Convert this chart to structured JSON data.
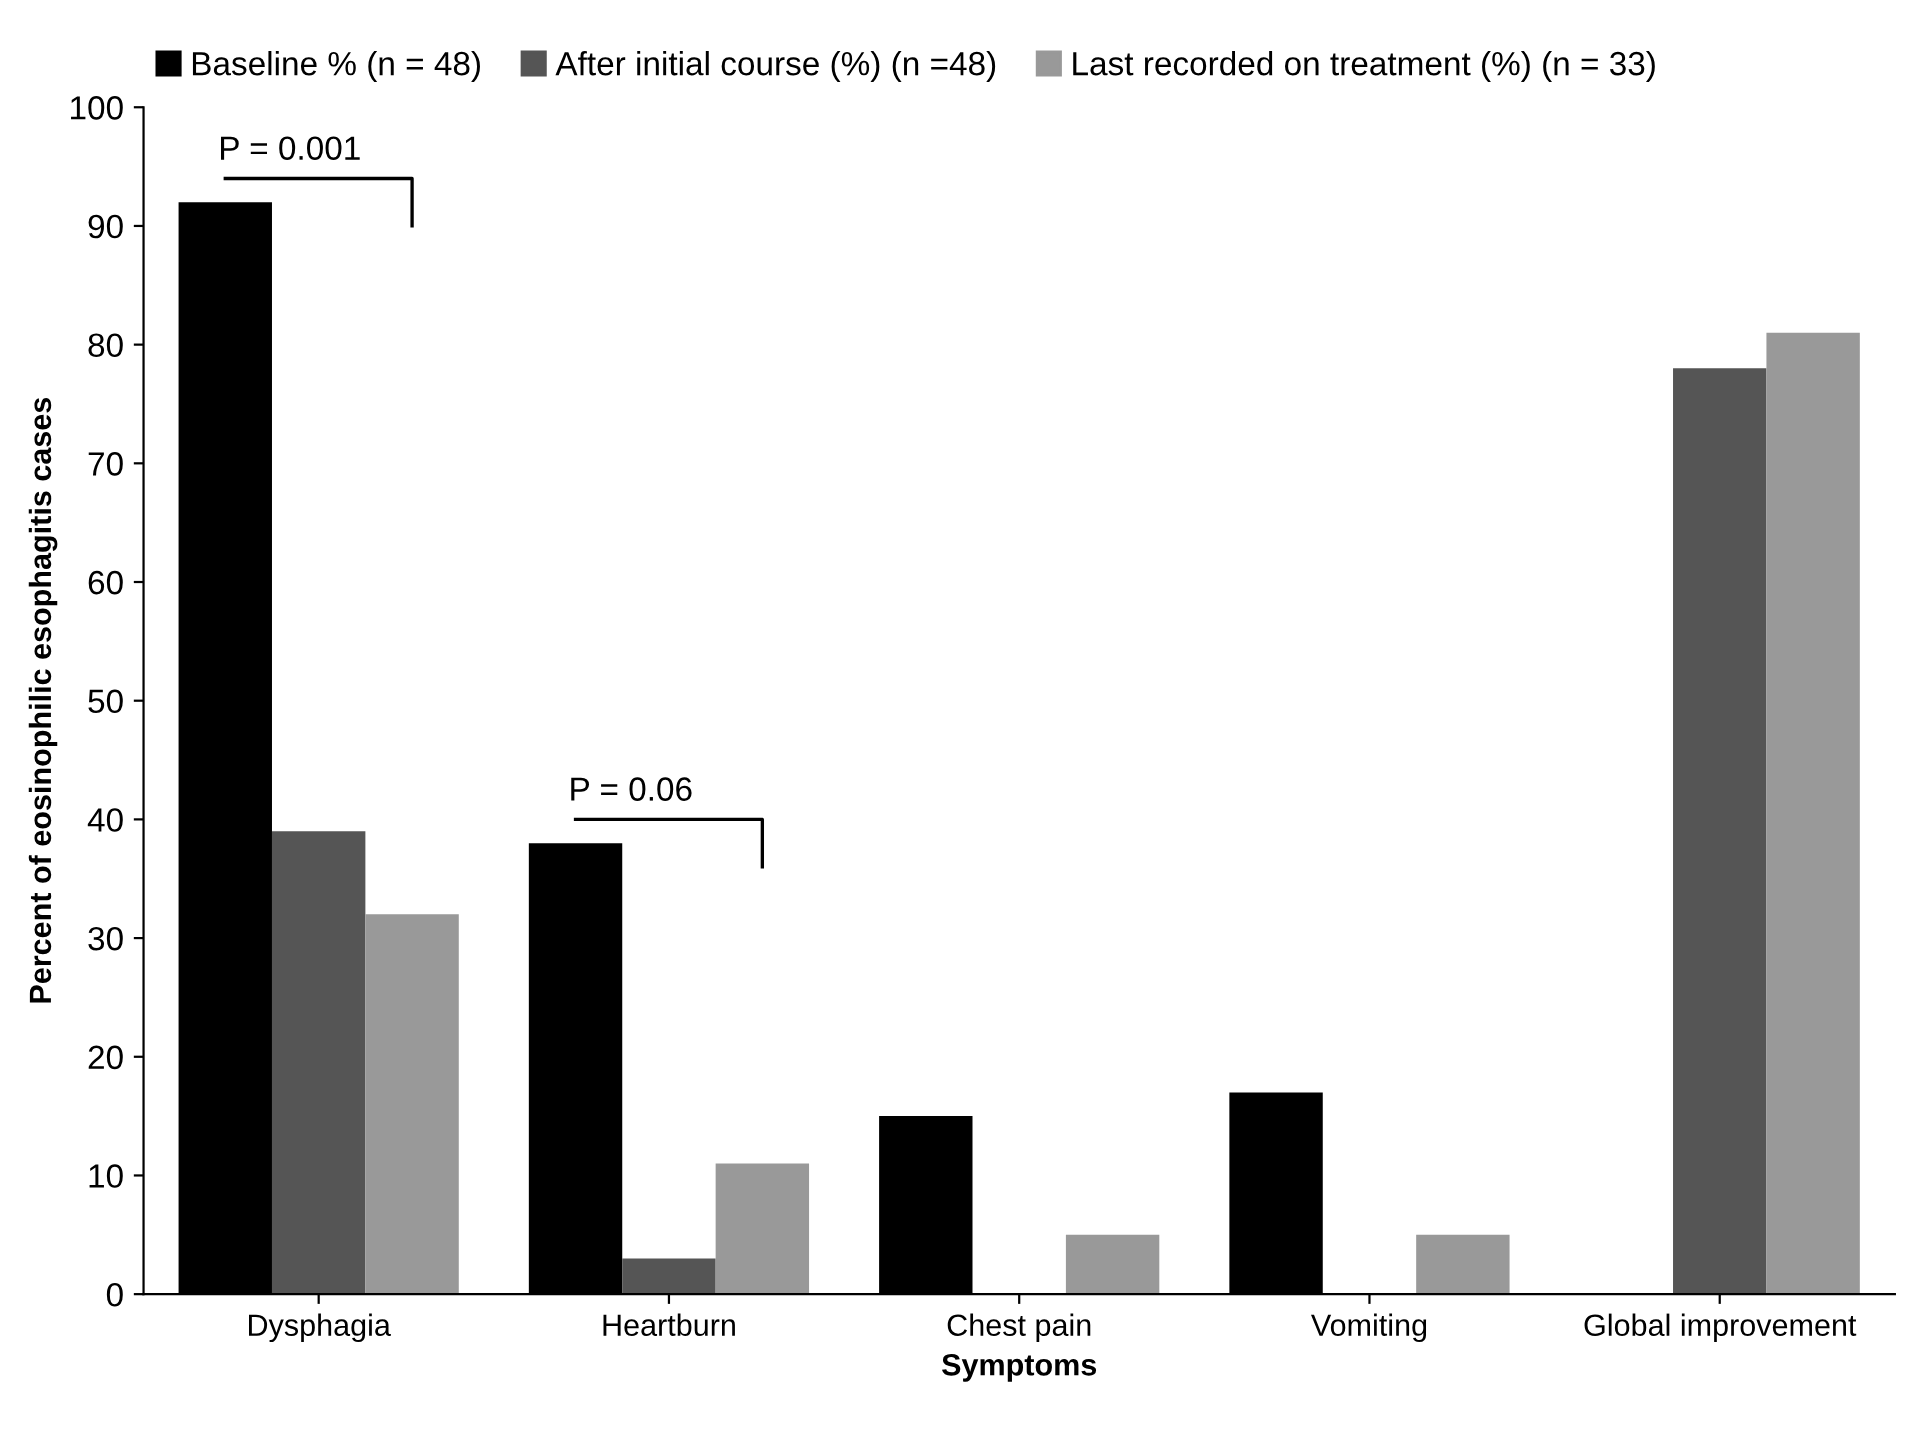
{
  "chart_data": {
    "type": "bar",
    "xlabel": "Symptoms",
    "ylabel": "Percent of eosinophilic esophagitis cases",
    "categories": [
      "Dysphagia",
      "Heartburn",
      "Chest pain",
      "Vomiting",
      "Global improvement"
    ],
    "series": [
      {
        "name": "Baseline % (n = 48)",
        "color": "#000000",
        "values": [
          92,
          38,
          15,
          17,
          null
        ]
      },
      {
        "name": "After initial course (%) (n =48)",
        "color": "#555555",
        "values": [
          39,
          3,
          null,
          null,
          78
        ]
      },
      {
        "name": "Last recorded on treatment (%) (n = 33)",
        "color": "#999999",
        "values": [
          32,
          11,
          5,
          5,
          81
        ]
      }
    ],
    "ylim": [
      0,
      100
    ],
    "yticks": [
      0,
      10,
      20,
      30,
      40,
      50,
      60,
      70,
      80,
      90,
      100
    ],
    "grid": false,
    "legend": "top left",
    "annotations": [
      "P = 0.001",
      "P = 0.06"
    ]
  }
}
